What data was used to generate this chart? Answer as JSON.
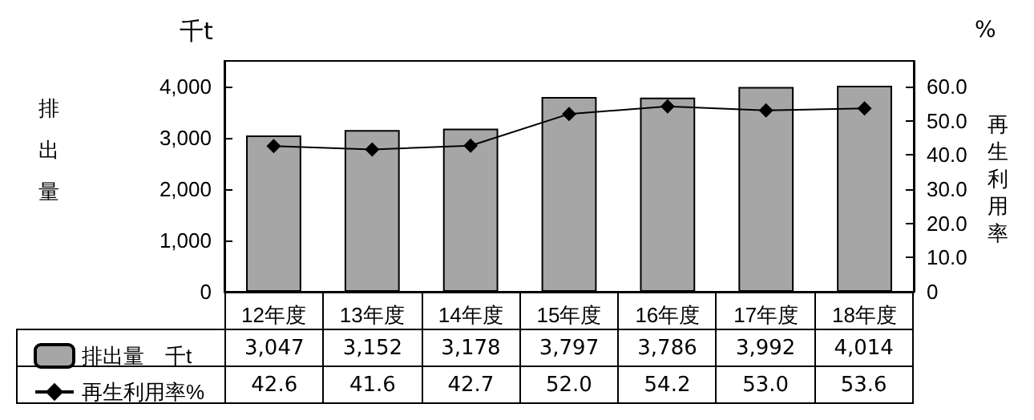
{
  "chart_data": {
    "type": "bar",
    "ylabel": "排出量",
    "y2label": "再生利用率",
    "annotations": [
      "千t",
      "%"
    ],
    "categories": [
      "12年度",
      "13年度",
      "14年度",
      "15年度",
      "16年度",
      "17年度",
      "18年度"
    ],
    "series": [
      {
        "name": "排出量　千t",
        "color": "#a6a6a6",
        "values": [
          3047,
          3152,
          3178,
          3797,
          3786,
          3992,
          4014
        ],
        "value_labels": [
          "3,047",
          "3,152",
          "3,178",
          "3,797",
          "3,786",
          "3,992",
          "4,014"
        ]
      },
      {
        "name": "再生利用率%",
        "type": "line",
        "axis": "y2",
        "color": "#000000",
        "marker": "diamond",
        "values": [
          42.6,
          41.6,
          42.7,
          52.0,
          54.2,
          53.0,
          53.6
        ],
        "value_labels": [
          "42.6",
          "41.6",
          "42.7",
          "52.0",
          "54.2",
          "53.0",
          "53.6"
        ]
      }
    ],
    "ylim": [
      0,
      4500
    ],
    "yticks": [
      0,
      {
        "value": 1000,
        "label": "1,000"
      },
      {
        "value": 2000,
        "label": "2,000"
      },
      {
        "value": 3000,
        "label": "3,000"
      },
      {
        "value": 4000,
        "label": "4,000"
      }
    ],
    "y2lim": [
      0,
      67.5
    ],
    "y2ticks": [
      0,
      {
        "value": 10,
        "label": "10.0"
      },
      {
        "value": 20,
        "label": "20.0"
      },
      {
        "value": 30,
        "label": "30.0"
      },
      {
        "value": 40,
        "label": "40.0"
      },
      {
        "value": 50,
        "label": "50.0"
      },
      {
        "value": 60,
        "label": "60.0"
      }
    ],
    "grid": false,
    "legend": "bottom left"
  }
}
